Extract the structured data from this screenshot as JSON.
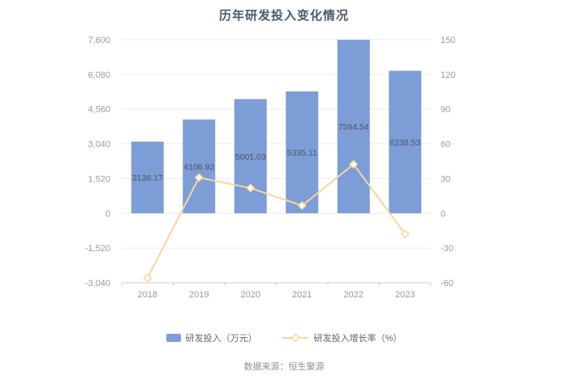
{
  "title": "历年研发投入变化情况",
  "footer": "数据来源：恒生聚源",
  "legend": [
    {
      "label": "研发投入（万元）",
      "color": "#7d9dd6"
    },
    {
      "label": "研发投入增长率（%）",
      "color": "#f8d5a0"
    }
  ],
  "chart_data": {
    "type": "bar",
    "subtype": "bar+line combo with dual y-axis",
    "title": "历年研发投入变化情况",
    "categories": [
      "2018",
      "2019",
      "2020",
      "2021",
      "2022",
      "2023"
    ],
    "series": [
      {
        "name": "研发投入（万元）",
        "type": "bar",
        "axis": "left",
        "color": "#7d9dd6",
        "values": [
          3138.17,
          4106.92,
          5001.03,
          5335.11,
          7594.54,
          6238.53
        ],
        "labels": [
          "3138.17",
          "4106.92",
          "5001.03",
          "5335.11",
          "7594.54",
          "6238.53"
        ]
      },
      {
        "name": "研发投入增长率（%）",
        "type": "line",
        "axis": "right",
        "color": "#f8d5a0",
        "marker": "diamond",
        "values": [
          -55.9,
          30.87,
          21.77,
          6.68,
          42.35,
          -17.85
        ]
      }
    ],
    "left_axis": {
      "min": -3040,
      "max": 7600,
      "ticks": [
        "7,600",
        "6,080",
        "4,560",
        "3,040",
        "1,520",
        "0",
        "-1,520",
        "-3,040"
      ]
    },
    "right_axis": {
      "min": -60,
      "max": 150,
      "ticks": [
        "150",
        "120",
        "90",
        "60",
        "30",
        "0",
        "-30",
        "-60"
      ]
    },
    "grid": true,
    "legend_position": "bottom",
    "text_colors": {
      "axis": "#999999",
      "bar_label": "#4d5566",
      "title": "#4a5b6e"
    }
  }
}
